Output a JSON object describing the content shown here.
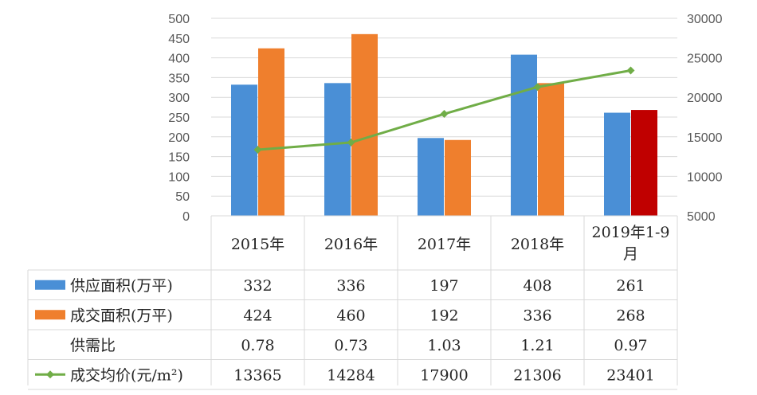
{
  "chart_data": {
    "type": "bar",
    "categories": [
      "2015年",
      "2016年",
      "2017年",
      "2018年",
      "2019年1-9月"
    ],
    "category_lines": [
      [
        "2015年"
      ],
      [
        "2016年"
      ],
      [
        "2017年"
      ],
      [
        "2018年"
      ],
      [
        "2019年1-9",
        "月"
      ]
    ],
    "y_left": {
      "ylim": [
        0,
        500
      ],
      "ticks": [
        "0",
        "50",
        "100",
        "150",
        "200",
        "250",
        "300",
        "350",
        "400",
        "450",
        "500"
      ]
    },
    "y_right": {
      "ylim": [
        5000,
        30000
      ],
      "ticks": [
        "5000",
        "10000",
        "15000",
        "20000",
        "25000",
        "30000"
      ]
    },
    "grid": true,
    "series": [
      {
        "name": "供应面积(万平)",
        "kind": "bar",
        "axis": "left",
        "values": [
          332,
          336,
          197,
          408,
          261
        ],
        "display": [
          "332",
          "336",
          "197",
          "408",
          "261"
        ],
        "color": "#4a8fd6"
      },
      {
        "name": "成交面积(万平)",
        "kind": "bar",
        "axis": "left",
        "values": [
          424,
          460,
          192,
          336,
          268
        ],
        "display": [
          "424",
          "460",
          "192",
          "336",
          "268"
        ],
        "color": "#ef7f2d",
        "highlight_last_color": "#c00000"
      },
      {
        "name": "供需比",
        "kind": "none",
        "values": [
          0.78,
          0.73,
          1.03,
          1.21,
          0.97
        ],
        "display": [
          "0.78",
          "0.73",
          "1.03",
          "1.21",
          "0.97"
        ]
      },
      {
        "name": "成交均价(元/m²)",
        "kind": "line",
        "axis": "right",
        "values": [
          13365,
          14284,
          17900,
          21306,
          23401
        ],
        "display": [
          "13365",
          "14284",
          "17900",
          "21306",
          "23401"
        ],
        "color": "#70ad47"
      }
    ]
  }
}
